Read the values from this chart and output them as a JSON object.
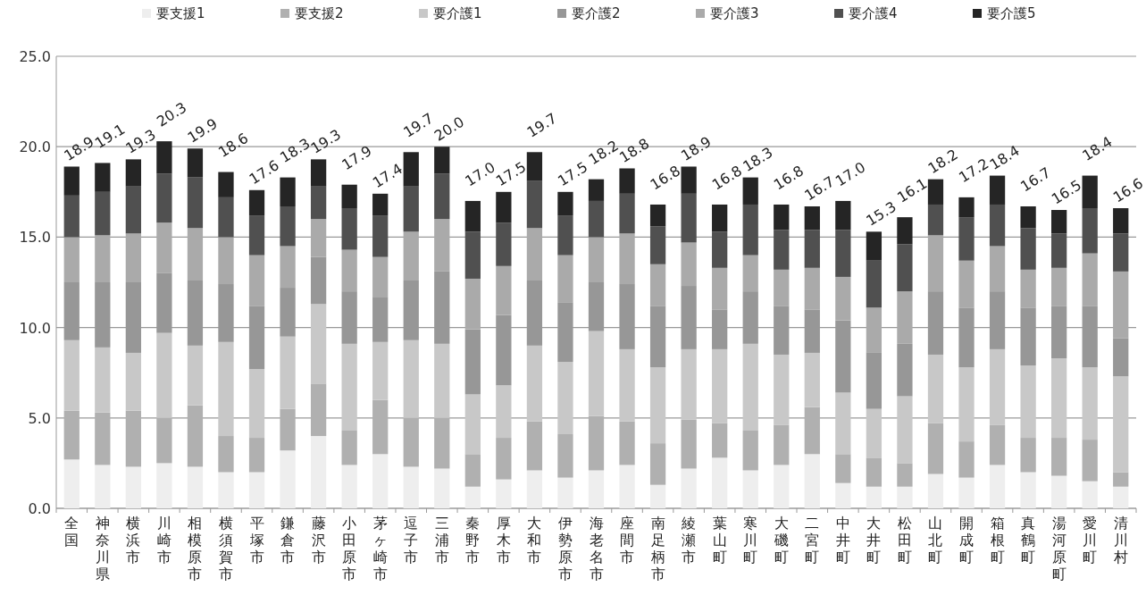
{
  "chart_data": {
    "type": "bar",
    "stacked": true,
    "categories": [
      "全国",
      "神奈川県",
      "横浜市",
      "川崎市",
      "相模原市",
      "横須賀市",
      "平塚市",
      "鎌倉市",
      "藤沢市",
      "小田原市",
      "茅ヶ崎市",
      "逗子市",
      "三浦市",
      "秦野市",
      "厚木市",
      "大和市",
      "伊勢原市",
      "海老名市",
      "座間市",
      "南足柄市",
      "綾瀬市",
      "葉山町",
      "寒川町",
      "大磯町",
      "二宮町",
      "中井町",
      "大井町",
      "松田町",
      "山北町",
      "開成町",
      "箱根町",
      "真鶴町",
      "湯河原町",
      "愛川町",
      "清川村"
    ],
    "series": [
      {
        "name": "要支援1",
        "color": "#eeeeee",
        "values": [
          2.7,
          2.4,
          2.3,
          2.5,
          2.3,
          2.0,
          2.0,
          3.2,
          4.0,
          2.4,
          3.0,
          2.3,
          2.2,
          1.2,
          1.6,
          2.1,
          1.7,
          2.1,
          2.4,
          1.3,
          2.2,
          2.8,
          2.1,
          2.4,
          3.0,
          1.4,
          1.2,
          1.2,
          1.9,
          1.7,
          2.4,
          2.0,
          1.8,
          1.5,
          1.2
        ]
      },
      {
        "name": "要支援2",
        "color": "#b0b0b0",
        "values": [
          2.7,
          2.9,
          3.1,
          2.5,
          3.4,
          2.0,
          1.9,
          2.3,
          2.9,
          1.9,
          3.0,
          2.7,
          2.8,
          1.8,
          2.3,
          2.7,
          2.4,
          3.0,
          2.4,
          2.3,
          2.7,
          1.9,
          2.2,
          2.2,
          2.6,
          1.6,
          1.6,
          1.3,
          2.8,
          2.0,
          2.2,
          1.9,
          2.1,
          2.3,
          0.8
        ]
      },
      {
        "name": "要介護1",
        "color": "#c8c8c8",
        "values": [
          3.9,
          3.6,
          3.2,
          4.7,
          3.3,
          5.2,
          3.8,
          4.0,
          4.4,
          4.8,
          3.2,
          4.3,
          4.1,
          3.3,
          2.9,
          4.2,
          4.0,
          4.7,
          4.0,
          4.2,
          3.9,
          4.1,
          4.8,
          3.9,
          3.0,
          3.4,
          2.7,
          3.7,
          3.8,
          4.1,
          4.2,
          4.0,
          4.4,
          4.0,
          5.3
        ]
      },
      {
        "name": "要介護2",
        "color": "#979797",
        "values": [
          3.2,
          3.6,
          3.9,
          3.3,
          3.6,
          3.2,
          3.5,
          2.7,
          2.6,
          2.9,
          2.5,
          3.3,
          4.0,
          3.6,
          3.9,
          3.6,
          3.3,
          2.7,
          3.6,
          3.4,
          3.5,
          2.2,
          2.9,
          2.7,
          2.4,
          4.0,
          3.1,
          2.9,
          3.5,
          3.3,
          3.2,
          3.2,
          2.9,
          3.4,
          2.1
        ]
      },
      {
        "name": "要介護3",
        "color": "#aaaaaa",
        "values": [
          2.5,
          2.6,
          2.7,
          2.8,
          2.9,
          2.6,
          2.8,
          2.3,
          2.1,
          2.3,
          2.2,
          2.7,
          2.9,
          2.8,
          2.7,
          2.9,
          2.6,
          2.5,
          2.8,
          2.3,
          2.4,
          2.3,
          2.0,
          2.0,
          2.3,
          2.4,
          2.5,
          2.9,
          3.1,
          2.6,
          2.5,
          2.1,
          2.1,
          2.9,
          3.7
        ]
      },
      {
        "name": "要介護4",
        "color": "#505050",
        "values": [
          2.3,
          2.4,
          2.6,
          2.7,
          2.8,
          2.2,
          2.2,
          2.2,
          1.8,
          2.3,
          2.3,
          2.5,
          2.5,
          2.6,
          2.4,
          2.6,
          2.2,
          2.0,
          2.2,
          2.1,
          2.7,
          2.0,
          2.8,
          2.2,
          2.1,
          2.6,
          2.6,
          2.6,
          1.7,
          2.4,
          2.3,
          2.3,
          1.9,
          2.5,
          2.1
        ]
      },
      {
        "name": "要介護5",
        "color": "#252525",
        "values": [
          1.6,
          1.6,
          1.5,
          1.8,
          1.6,
          1.4,
          1.4,
          1.6,
          1.5,
          1.3,
          1.2,
          1.9,
          1.5,
          1.7,
          1.7,
          1.6,
          1.3,
          1.2,
          1.4,
          1.2,
          1.5,
          1.5,
          1.5,
          1.4,
          1.3,
          1.6,
          1.6,
          1.5,
          1.4,
          1.1,
          1.6,
          1.2,
          1.3,
          1.8,
          1.4
        ]
      }
    ],
    "totals": [
      "18.9",
      "19.1",
      "19.3",
      "20.3",
      "19.9",
      "18.6",
      "17.6",
      "18.3",
      "19.3",
      "17.9",
      "17.4",
      "19.7",
      "20.0",
      "17.0",
      "17.5",
      "19.7",
      "17.5",
      "18.2",
      "18.8",
      "16.8",
      "18.9",
      "16.8",
      "18.3",
      "16.8",
      "16.7",
      "17.0",
      "15.3",
      "16.1",
      "18.2",
      "17.2",
      "18.4",
      "16.7",
      "16.5",
      "18.4",
      "16.6"
    ],
    "ylim": [
      0,
      25
    ],
    "yticks": [
      {
        "value": 0,
        "label": "0.0"
      },
      {
        "value": 5,
        "label": "5.0"
      },
      {
        "value": 10,
        "label": "10.0"
      },
      {
        "value": 15,
        "label": "15.0"
      },
      {
        "value": 20,
        "label": "20.0"
      },
      {
        "value": 25,
        "label": "25.0"
      }
    ],
    "grid": "y",
    "legend": "top"
  }
}
